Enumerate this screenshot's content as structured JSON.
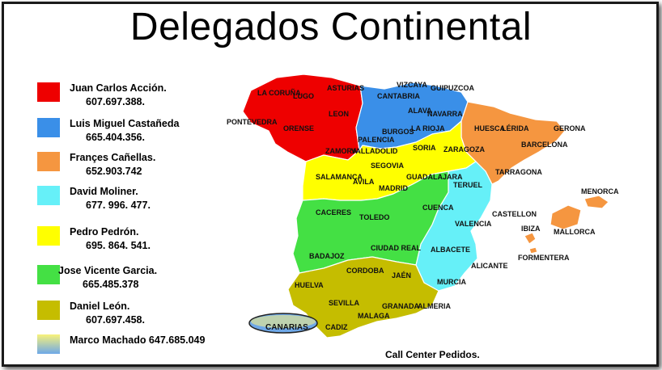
{
  "title": "Delegados Continental",
  "legend": [
    {
      "name": "Juan Carlos Acción.",
      "phone": "607.697.388.",
      "color": "#ee0000"
    },
    {
      "name": "Luis Miguel Castañeda",
      "phone": "665.404.356.",
      "color": "#3a8fe8"
    },
    {
      "name": "Françes Cañellas.",
      "phone": "652.903.742",
      "color": "#f59640"
    },
    {
      "name": "David Moliner.",
      "phone": "677. 996. 477.",
      "color": "#66f0f8"
    },
    {
      "name": "Pedro Pedrón.",
      "phone": "695. 864. 541.",
      "color": "#ffff00"
    },
    {
      "name": "Jose Vicente Garcia.",
      "phone": "665.485.378",
      "color": "#44e044"
    },
    {
      "name": "Daniel  León.",
      "phone": "607.697.458.",
      "color": "#c5bd00"
    },
    {
      "name": "Marco Machado 647.685.049",
      "phone": "",
      "color": "#f6f07a"
    }
  ],
  "provinces": {
    "la_coruna": "LA CORUÑA",
    "lugo": "LUGO",
    "asturias": "ASTURIAS",
    "pontevedra": "PONTEVEDRA",
    "orense": "ORENSE",
    "leon": "LEON",
    "zamora": "ZAMORA",
    "cantabria": "CANTABRIA",
    "vizcaya": "VIZCAYA",
    "guipuzcoa": "GUIPUZCOA",
    "alava": "ALAVA",
    "navarra": "NAVARRA",
    "burgos": "BURGOS",
    "la_rioja": "LA RIOJA",
    "palencia": "PALENCIA",
    "valladolid": "VALLADOLID",
    "soria": "SORIA",
    "zaragoza": "ZARAGOZA",
    "huesca": "HUESCA",
    "lerida": "LÉRIDA",
    "gerona": "GERONA",
    "barcelona": "BARCELONA",
    "tarragona": "TARRAGONA",
    "salamanca": "SALAMANCA",
    "segovia": "SEGOVIA",
    "avila": "AVILA",
    "madrid": "MADRID",
    "guadalajara": "GUADALAJARA",
    "teruel": "TERUEL",
    "menorca": "MENORCA",
    "caceres": "CACERES",
    "toledo": "TOLEDO",
    "cuenca": "CUENCA",
    "valencia": "VALENCIA",
    "castellon": "CASTELLON",
    "mallorca": "MALLORCA",
    "ibiza": "IBIZA",
    "formentera": "FORMENTERA",
    "badajoz": "BADAJOZ",
    "ciudad_real": "CIUDAD REAL",
    "albacete": "ALBACETE",
    "alicante": "ALICANTE",
    "cordoba": "CORDOBA",
    "jaen": "JAÉN",
    "murcia": "MURCIA",
    "huelva": "HUELVA",
    "sevilla": "SEVILLA",
    "granada": "GRANADA",
    "almeria": "ALMERIA",
    "malaga": "MALAGA",
    "cadiz": "CADIZ",
    "canarias": "CANARIAS."
  },
  "footer": "Call Center Pedidos."
}
